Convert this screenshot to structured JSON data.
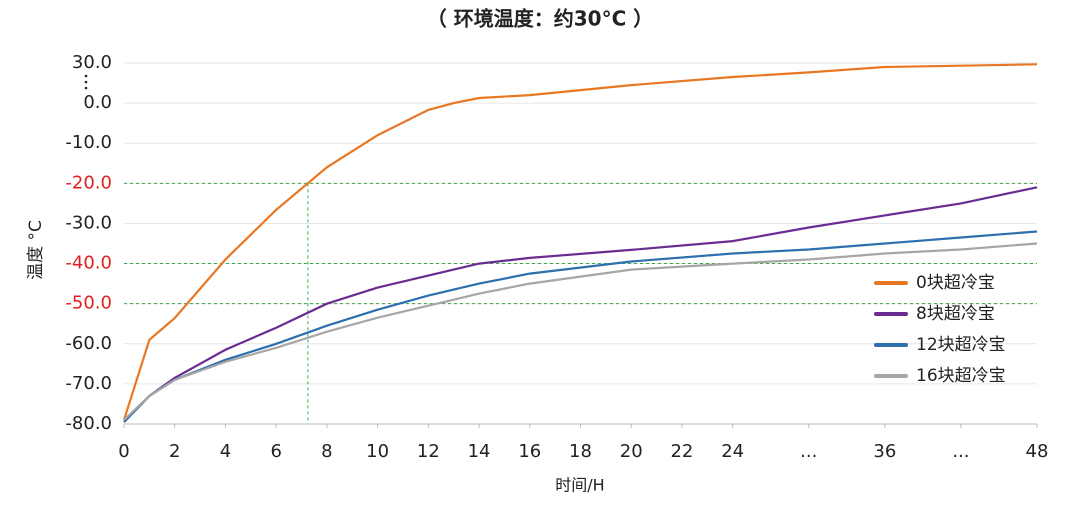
{
  "chart_data": {
    "type": "line",
    "title": "（ 环境温度：约30°C ）",
    "x_label": "时间/H",
    "y_label": "温度 °C",
    "x": [
      0,
      1,
      2,
      4,
      6,
      8,
      10,
      12,
      13,
      14,
      16,
      20,
      24,
      30,
      36,
      42,
      48
    ],
    "series": [
      {
        "name": "0块超冷宝",
        "color": "#e87722",
        "values": [
          -79,
          -59,
          -53.6,
          -39,
          -26.6,
          -16,
          -8,
          -1.7,
          0,
          3.8,
          6,
          13.5,
          19.5,
          23,
          27,
          28,
          29
        ]
      },
      {
        "name": "8块超冷宝",
        "color": "#6a2c91",
        "values": [
          -79.5,
          -73,
          -68.5,
          -61.5,
          -56,
          -50,
          -46,
          -43,
          -41.5,
          -40,
          -38.6,
          -36.6,
          -34.4,
          -31,
          -28,
          -25,
          -21
        ]
      },
      {
        "name": "12块超冷宝",
        "color": "#2e6fad",
        "values": [
          -79.5,
          -73,
          -69,
          -64,
          -60,
          -55.5,
          -51.5,
          -48,
          -46.5,
          -45,
          -42.5,
          -39.5,
          -37.5,
          -36.5,
          -35,
          -33.5,
          -32
        ]
      },
      {
        "name": "16块超冷宝",
        "color": "#a6a6a6",
        "values": [
          -79,
          -73,
          -69,
          -64.5,
          -61,
          -57,
          -53.5,
          -50.5,
          -49,
          -47.5,
          -45,
          -41.5,
          -40,
          -39,
          -37.5,
          -36.5,
          -35
        ]
      }
    ],
    "xlim": [
      0,
      48
    ],
    "xticks": [
      0,
      2,
      4,
      6,
      8,
      10,
      12,
      14,
      16,
      18,
      20,
      22,
      24,
      {
        "value": 30,
        "label": "..."
      },
      36,
      {
        "value": 42,
        "label": "..."
      },
      48
    ],
    "xbreak": [
      24,
      0.5
    ],
    "ylim": [
      -80,
      30
    ],
    "yticks": [
      {
        "value": -80,
        "label": "-80.0"
      },
      {
        "value": -70,
        "label": "-70.0"
      },
      {
        "value": -60,
        "label": "-60.0"
      },
      {
        "value": -50,
        "label": "-50.0"
      },
      {
        "value": -40,
        "label": "-40.0"
      },
      {
        "value": -30,
        "label": "-30.0"
      },
      {
        "value": -20,
        "label": "-20.0"
      },
      {
        "value": -10,
        "label": "-10.0"
      },
      {
        "value": 0,
        "label": "0.0"
      },
      {
        "value": 30,
        "label": "30.0"
      }
    ],
    "highlight_y": [
      -20,
      -40,
      -50
    ],
    "highlight_x": 7.25,
    "highlight_color": "#e02020",
    "grid": true,
    "legend": "right"
  }
}
